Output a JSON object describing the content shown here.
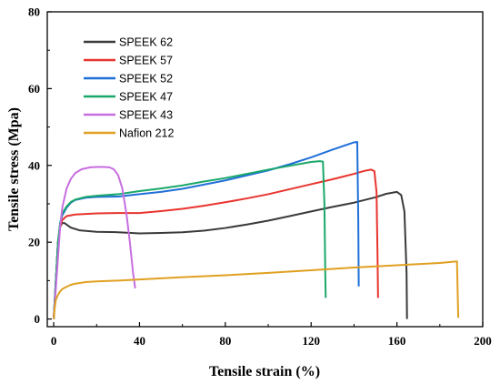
{
  "chart_data": {
    "type": "line",
    "title": "",
    "xlabel": "Tensile strain (%)",
    "ylabel": "Tensile stress (Mpa)",
    "xlim": [
      -3,
      200
    ],
    "ylim": [
      -2,
      80
    ],
    "xticks": [
      0,
      40,
      80,
      120,
      160,
      200
    ],
    "yticks": [
      0,
      20,
      40,
      60,
      80
    ],
    "xtick_labels": [
      "0",
      "40",
      "80",
      "120",
      "160",
      "200"
    ],
    "ytick_labels": [
      "0",
      "20",
      "40",
      "60",
      "80"
    ],
    "legend_position": "top-left",
    "series": [
      {
        "name": "SPEEK 62",
        "color": "#3a3a3a",
        "x": [
          0,
          1,
          2,
          3,
          4,
          5,
          8,
          12,
          20,
          30,
          40,
          50,
          60,
          70,
          80,
          90,
          100,
          110,
          120,
          130,
          140,
          150,
          155,
          160,
          162,
          163.5,
          164.5,
          164.7
        ],
        "y": [
          0,
          10,
          20,
          24,
          25,
          25,
          23.8,
          23.1,
          22.7,
          22.6,
          22.3,
          22.4,
          22.6,
          23,
          23.7,
          24.6,
          25.6,
          26.8,
          28,
          29.2,
          30.3,
          31.7,
          32.6,
          33.1,
          32.3,
          28,
          12,
          0
        ]
      },
      {
        "name": "SPEEK 57",
        "color": "#e8342e",
        "x": [
          0,
          1,
          2,
          3,
          4,
          6,
          10,
          20,
          30,
          40,
          50,
          60,
          70,
          80,
          90,
          100,
          110,
          120,
          130,
          140,
          145,
          148,
          149.5,
          150.5,
          151,
          151.2
        ],
        "y": [
          0,
          10,
          20,
          24,
          25.8,
          26.8,
          27.2,
          27.5,
          27.6,
          27.6,
          28.1,
          28.7,
          29.5,
          30.4,
          31.4,
          32.5,
          33.8,
          35.1,
          36.4,
          37.8,
          38.6,
          38.9,
          38.5,
          33,
          15,
          5.5
        ]
      },
      {
        "name": "SPEEK 52",
        "color": "#1f6fd8",
        "x": [
          0,
          1,
          2,
          3,
          4,
          6,
          8,
          10,
          15,
          20,
          30,
          40,
          50,
          60,
          70,
          80,
          90,
          100,
          110,
          120,
          130,
          140,
          141.5,
          142,
          142.2
        ],
        "y": [
          0,
          10,
          20,
          25,
          27,
          29,
          30.3,
          31,
          31.6,
          31.8,
          31.9,
          32.5,
          33.1,
          33.9,
          35,
          36.1,
          37.4,
          38.7,
          40.3,
          42.1,
          44.1,
          46,
          46.1,
          25,
          8.5
        ]
      },
      {
        "name": "SPEEK 47",
        "color": "#1aa86a",
        "x": [
          0,
          1,
          2,
          3,
          4,
          6,
          8,
          10,
          15,
          20,
          30,
          40,
          50,
          60,
          70,
          80,
          90,
          100,
          110,
          120,
          124,
          125.5,
          126.2,
          126.6,
          126.8
        ],
        "y": [
          0,
          10,
          20,
          25,
          27.5,
          29.3,
          30.5,
          31.1,
          31.8,
          32.1,
          32.5,
          33.3,
          34,
          34.8,
          35.8,
          36.7,
          37.8,
          38.9,
          39.9,
          40.9,
          41.1,
          41,
          30,
          12,
          5.5
        ]
      },
      {
        "name": "SPEEK 43",
        "color": "#c76ee0",
        "x": [
          0,
          1,
          2,
          3,
          4,
          6,
          8,
          10,
          13,
          17,
          20,
          23,
          26,
          28,
          30,
          32,
          34,
          35.5,
          37,
          38
        ],
        "y": [
          0,
          8,
          16,
          24,
          29,
          34,
          36.5,
          38,
          39,
          39.5,
          39.6,
          39.6,
          39.5,
          39,
          37.5,
          34,
          27,
          20,
          12,
          8
        ]
      },
      {
        "name": "Nafion 212",
        "color": "#e0a020",
        "x": [
          0,
          0.5,
          1,
          2,
          3,
          4,
          6,
          8,
          10,
          15,
          20,
          30,
          40,
          50,
          60,
          80,
          100,
          120,
          140,
          160,
          170,
          180,
          188,
          188.4,
          188.6
        ],
        "y": [
          0,
          3,
          5,
          6.3,
          7.2,
          7.8,
          8.4,
          8.9,
          9.2,
          9.6,
          9.8,
          10,
          10.3,
          10.6,
          10.9,
          11.4,
          12,
          12.7,
          13.4,
          14,
          14.3,
          14.6,
          15,
          5,
          0.3
        ]
      }
    ]
  }
}
